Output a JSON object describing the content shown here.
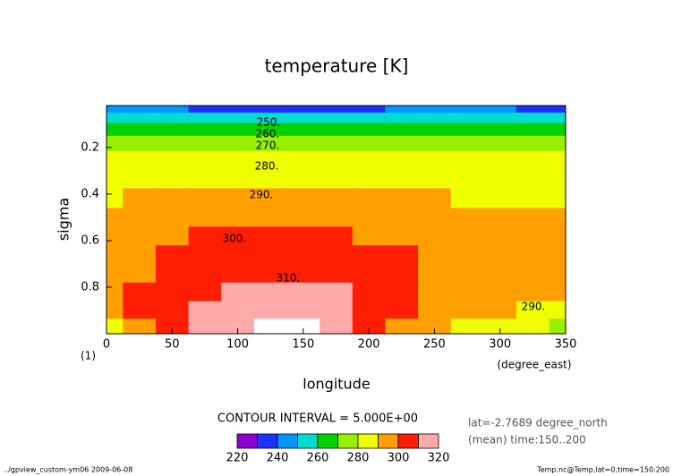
{
  "chart_data": {
    "type": "contour",
    "title": "temperature [K]",
    "xlabel": "longitude",
    "ylabel": "sigma",
    "x_unit_label": "(degree_east)",
    "y_unit_label": "(1)",
    "x": [
      0,
      25,
      50,
      75,
      100,
      125,
      150,
      175,
      200,
      225,
      250,
      275,
      300,
      325,
      350
    ],
    "y": [
      0.03,
      0.07,
      0.12,
      0.18,
      0.25,
      0.33,
      0.42,
      0.5,
      0.58,
      0.66,
      0.74,
      0.82,
      0.9,
      0.97
    ],
    "z": [
      [
        242,
        242,
        240,
        238,
        236,
        235,
        234,
        236,
        238,
        240,
        242,
        242,
        240,
        238,
        238
      ],
      [
        254,
        254,
        253,
        252,
        251,
        251,
        251,
        252,
        253,
        254,
        254,
        254,
        253,
        252,
        252
      ],
      [
        264,
        264,
        263,
        262,
        262,
        261,
        261,
        262,
        263,
        264,
        264,
        264,
        263,
        263,
        263
      ],
      [
        273,
        273,
        272,
        272,
        271,
        271,
        271,
        272,
        273,
        274,
        274,
        274,
        273,
        273,
        273
      ],
      [
        281,
        281,
        281,
        281,
        282,
        282,
        282,
        282,
        282,
        282,
        282,
        281,
        281,
        280,
        280
      ],
      [
        286,
        286,
        287,
        288,
        288,
        289,
        289,
        288,
        287,
        287,
        286,
        286,
        285,
        285,
        285
      ],
      [
        289,
        290,
        291,
        292,
        293,
        293,
        293,
        292,
        291,
        290,
        290,
        289,
        289,
        288,
        288
      ],
      [
        291,
        293,
        295,
        297,
        298,
        298,
        298,
        297,
        295,
        294,
        293,
        292,
        291,
        290,
        290
      ],
      [
        293,
        296,
        299,
        301,
        302,
        302,
        302,
        301,
        299,
        297,
        295,
        294,
        293,
        292,
        292
      ],
      [
        294,
        298,
        302,
        304,
        305,
        306,
        306,
        305,
        303,
        300,
        298,
        296,
        295,
        294,
        294
      ],
      [
        294,
        299,
        304,
        307,
        308,
        309,
        309,
        308,
        305,
        302,
        299,
        297,
        296,
        295,
        295
      ],
      [
        293,
        300,
        306,
        309,
        311,
        312,
        312,
        310,
        306,
        302,
        298,
        296,
        294,
        292,
        292
      ],
      [
        292,
        300,
        307,
        311,
        313,
        314,
        314,
        312,
        306,
        300,
        296,
        293,
        291,
        289,
        288
      ],
      [
        288,
        298,
        308,
        314,
        317,
        321,
        321,
        316,
        305,
        295,
        290,
        286,
        283,
        280,
        278
      ]
    ],
    "xlim": [
      0,
      350
    ],
    "ylim": [
      1,
      0.02
    ],
    "xticks": [
      0,
      50,
      100,
      150,
      200,
      250,
      300,
      350
    ],
    "yticks": [
      0.2,
      0.4,
      0.6,
      0.8
    ],
    "contour_labels": [
      "250.",
      "260.",
      "270.",
      "280.",
      "290.",
      "300.",
      "310.",
      "290."
    ],
    "contour_interval_text": "CONTOUR INTERVAL = 5.000E+00",
    "colorbar": {
      "levels": [
        220,
        230,
        240,
        250,
        260,
        270,
        280,
        290,
        300,
        310,
        320
      ],
      "colors": [
        "#8c00d2",
        "#1e32ff",
        "#0096ff",
        "#00dcd2",
        "#00d200",
        "#96f000",
        "#f0ff00",
        "#ffa000",
        "#ff1e00",
        "#ffaaaa"
      ],
      "ticks": [
        220,
        240,
        260,
        280,
        300,
        320
      ]
    },
    "info": [
      "lat=-2.7689 degree_north",
      "(mean) time:150..200"
    ],
    "footer_left": "../gpview_custom-ym06  2009-06-08",
    "footer_right": "Temp.nc@Temp,lat=0,time=150:200"
  }
}
